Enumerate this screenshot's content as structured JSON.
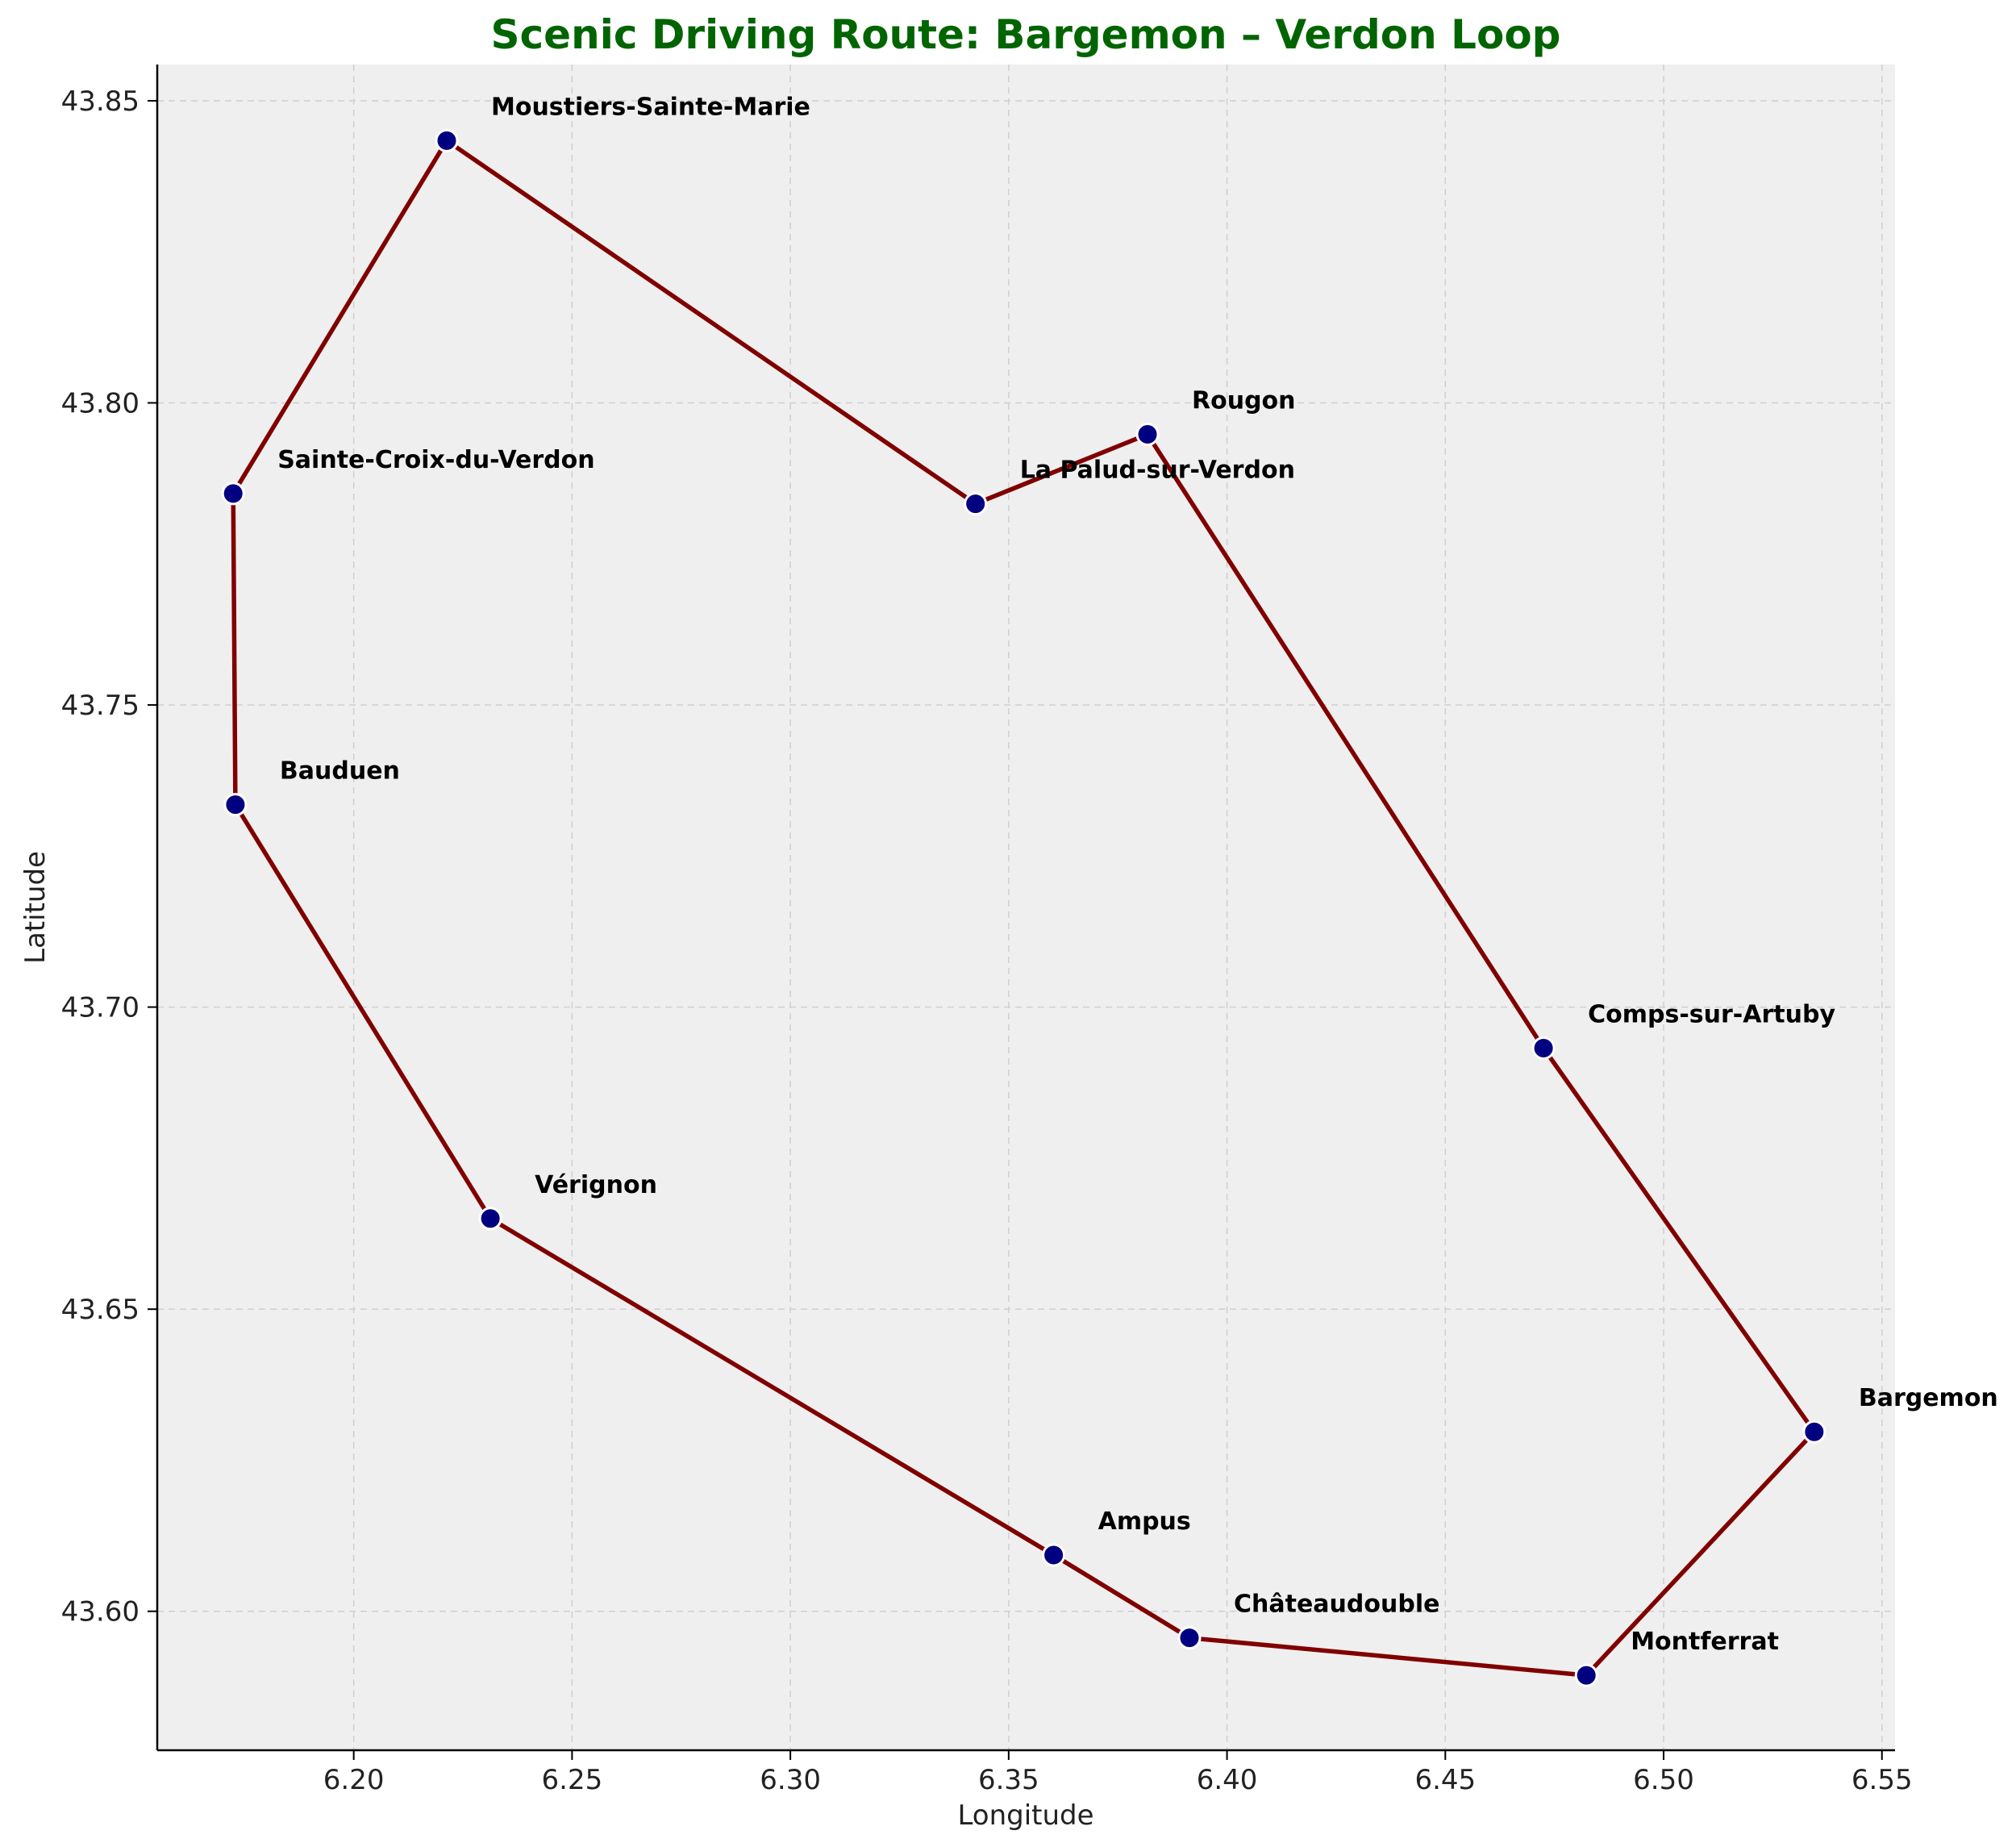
{
  "chart_data": {
    "type": "line",
    "title": "Scenic Driving Route: Bargemon – Verdon Loop",
    "xlabel": "Longitude",
    "ylabel": "Latitude",
    "xlim": [
      6.155,
      6.553
    ],
    "ylim": [
      43.577,
      43.856
    ],
    "xticks": [
      6.2,
      6.25,
      6.3,
      6.35,
      6.4,
      6.45,
      6.5,
      6.55
    ],
    "xtick_labels": [
      "6.20",
      "6.25",
      "6.30",
      "6.35",
      "6.40",
      "6.45",
      "6.50",
      "6.55"
    ],
    "yticks": [
      43.6,
      43.65,
      43.7,
      43.75,
      43.8,
      43.85
    ],
    "ytick_labels": [
      "43.60",
      "43.65",
      "43.70",
      "43.75",
      "43.80",
      "43.85"
    ],
    "grid": true,
    "colors": {
      "title": "#006400",
      "route_line": "#800000",
      "marker_fill": "#000080",
      "marker_edge": "#ffffff",
      "plot_background": "#efefef"
    },
    "points": [
      {
        "name": "Bargemon",
        "lon": 6.5345,
        "lat": 43.6297
      },
      {
        "name": "Comps-sur-Artuby",
        "lon": 6.4725,
        "lat": 43.6932
      },
      {
        "name": "Rougon",
        "lon": 6.3818,
        "lat": 43.7948
      },
      {
        "name": "La Palud-sur-Verdon",
        "lon": 6.3424,
        "lat": 43.7833
      },
      {
        "name": "Moustiers-Sainte-Marie",
        "lon": 6.2213,
        "lat": 43.8434
      },
      {
        "name": "Sainte-Croix-du-Verdon",
        "lon": 6.1724,
        "lat": 43.785
      },
      {
        "name": "Bauduen",
        "lon": 6.1729,
        "lat": 43.7335
      },
      {
        "name": "Vérignon",
        "lon": 6.2313,
        "lat": 43.665
      },
      {
        "name": "Ampus",
        "lon": 6.3603,
        "lat": 43.6093
      },
      {
        "name": "Châteaudouble",
        "lon": 6.3914,
        "lat": 43.5956
      },
      {
        "name": "Montferrat",
        "lon": 6.4823,
        "lat": 43.5894
      },
      {
        "name": "Bargemon",
        "lon": 6.5345,
        "lat": 43.6297
      }
    ]
  }
}
